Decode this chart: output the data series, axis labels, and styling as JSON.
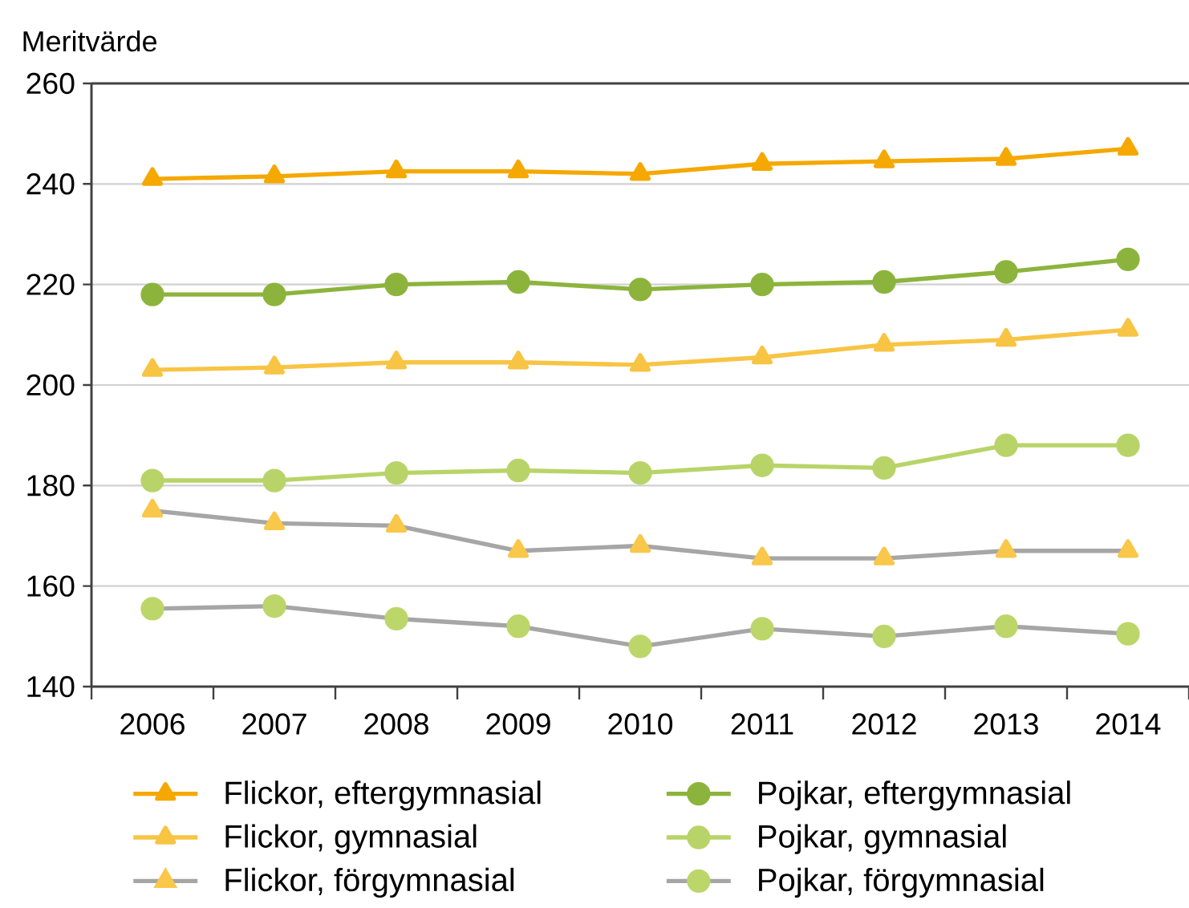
{
  "chart_data": {
    "type": "line",
    "ylabel": "Meritvärde",
    "categories": [
      "2006",
      "2007",
      "2008",
      "2009",
      "2010",
      "2011",
      "2012",
      "2013",
      "2014"
    ],
    "ylim": [
      140,
      260
    ],
    "yticks": [
      140,
      160,
      180,
      200,
      220,
      240,
      260
    ],
    "grid": "y",
    "legend": "bottom",
    "series": [
      {
        "name": "Flickor, eftergymnasial",
        "color": "#f5a800",
        "marker": "triangle",
        "values": [
          241,
          241.5,
          242.5,
          242.5,
          242,
          244,
          244.5,
          245,
          247
        ]
      },
      {
        "name": "Pojkar, eftergymnasial",
        "color": "#8cb43c",
        "marker": "circle",
        "values": [
          218,
          218,
          220,
          220.5,
          219,
          220,
          220.5,
          222.5,
          225
        ]
      },
      {
        "name": "Flickor, gymnasial",
        "color": "#f8c444",
        "marker": "triangle",
        "values": [
          203,
          203.5,
          204.5,
          204.5,
          204,
          205.5,
          208,
          209,
          211
        ]
      },
      {
        "name": "Pojkar, gymnasial",
        "color": "#b8d468",
        "marker": "circle",
        "values": [
          181,
          181,
          182.5,
          183,
          182.5,
          184,
          183.5,
          188,
          188
        ]
      },
      {
        "name": "Flickor, förgymnasial",
        "color": "#a6a6a6",
        "colors": [
          "#f9c74a",
          "#f9c74a",
          "#f9c74a",
          "#f9c74a",
          "#f9c74a",
          "#f9c74a",
          "#f9c74a",
          "#f9c74a",
          "#f9c74a"
        ],
        "marker": "triangle",
        "values": [
          175,
          172.5,
          172,
          167,
          168,
          165.5,
          165.5,
          167,
          167
        ]
      },
      {
        "name": "Pojkar, förgymnasial",
        "color": "#a6a6a6",
        "colors": [
          "#bcd66a",
          "#bcd66a",
          "#bcd66a",
          "#bcd66a",
          "#bcd66a",
          "#bcd66a",
          "#bcd66a",
          "#bcd66a",
          "#bcd66a"
        ],
        "marker": "circle",
        "values": [
          155.5,
          156,
          153.5,
          152,
          148,
          151.5,
          150,
          152,
          150.5
        ]
      }
    ]
  }
}
